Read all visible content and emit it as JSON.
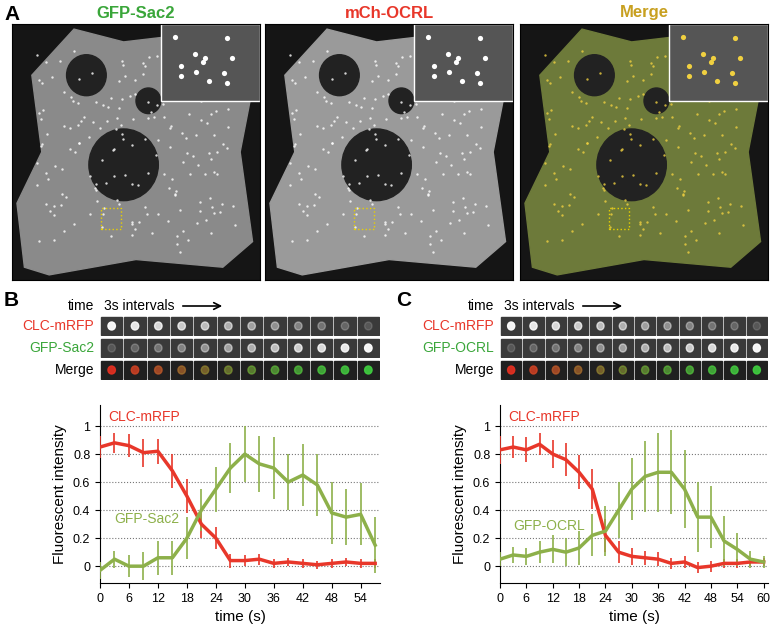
{
  "figure": {
    "panel_A": {
      "label": "A",
      "images": [
        {
          "title": "GFP-Sac2",
          "color": "#3aa63a"
        },
        {
          "title": "mCh-OCRL",
          "color": "#e8372a"
        },
        {
          "title": "Merge",
          "color": "#c8a020"
        }
      ]
    },
    "panel_B": {
      "label": "B",
      "time_label": "time",
      "interval_label": "3s intervals",
      "rows": [
        {
          "name": "CLC-mRFP",
          "color": "#e8372a"
        },
        {
          "name": "GFP-Sac2",
          "color": "#3aa63a"
        },
        {
          "name": "Merge",
          "color": "#000000"
        }
      ]
    },
    "panel_C": {
      "label": "C",
      "time_label": "time",
      "interval_label": "3s intervals",
      "rows": [
        {
          "name": "CLC-mRFP",
          "color": "#e8372a"
        },
        {
          "name": "GFP-OCRL",
          "color": "#3aa63a"
        },
        {
          "name": "Merge",
          "color": "#000000"
        }
      ]
    }
  },
  "chart_data": [
    {
      "type": "line",
      "x_label": "time (s)",
      "y_label": "Fluorescent intensity",
      "x": [
        0,
        3,
        6,
        9,
        12,
        15,
        18,
        21,
        24,
        27,
        30,
        33,
        36,
        39,
        42,
        45,
        48,
        51,
        54,
        57
      ],
      "xlim": [
        0,
        58
      ],
      "xticks": [
        0,
        6,
        12,
        18,
        24,
        30,
        36,
        42,
        48,
        54
      ],
      "ylim": [
        -0.12,
        1.15
      ],
      "yticks": [
        0,
        0.2,
        0.4,
        0.6,
        0.8,
        1
      ],
      "grid": true,
      "series": [
        {
          "name": "CLC-mRFP",
          "color": "#e8372a",
          "values": [
            0.85,
            0.88,
            0.86,
            0.81,
            0.82,
            0.68,
            0.5,
            0.3,
            0.2,
            0.04,
            0.04,
            0.05,
            0.02,
            0.03,
            0.02,
            0.01,
            0.02,
            0.03,
            0.02,
            0.02
          ],
          "errors": [
            0.08,
            0.07,
            0.08,
            0.1,
            0.09,
            0.12,
            0.12,
            0.1,
            0.08,
            0.05,
            0.04,
            0.04,
            0.03,
            0.03,
            0.03,
            0.03,
            0.03,
            0.03,
            0.03,
            0.03
          ]
        },
        {
          "name": "GFP-Sac2",
          "color": "#8db04a",
          "values": [
            -0.03,
            0.05,
            0.0,
            0.0,
            0.06,
            0.06,
            0.2,
            0.4,
            0.55,
            0.7,
            0.8,
            0.73,
            0.7,
            0.6,
            0.65,
            0.58,
            0.38,
            0.35,
            0.37,
            0.15
          ],
          "errors": [
            0.06,
            0.06,
            0.08,
            0.1,
            0.12,
            0.12,
            0.15,
            0.15,
            0.16,
            0.18,
            0.2,
            0.2,
            0.22,
            0.2,
            0.22,
            0.22,
            0.22,
            0.2,
            0.22,
            0.2
          ]
        }
      ]
    },
    {
      "type": "line",
      "x_label": "time (s)",
      "y_label": "Fluorescent intensity",
      "x": [
        0,
        3,
        6,
        9,
        12,
        15,
        18,
        21,
        24,
        27,
        30,
        33,
        36,
        39,
        42,
        45,
        48,
        51,
        54,
        57,
        60
      ],
      "xlim": [
        0,
        61
      ],
      "xticks": [
        0,
        6,
        12,
        18,
        24,
        30,
        36,
        42,
        48,
        54,
        60
      ],
      "ylim": [
        -0.12,
        1.15
      ],
      "yticks": [
        0,
        0.2,
        0.4,
        0.6,
        0.8,
        1
      ],
      "grid": true,
      "series": [
        {
          "name": "CLC-mRFP",
          "color": "#e8372a",
          "values": [
            0.83,
            0.85,
            0.83,
            0.87,
            0.8,
            0.76,
            0.67,
            0.55,
            0.22,
            0.1,
            0.07,
            0.06,
            0.05,
            0.02,
            0.03,
            -0.01,
            0.0,
            0.02,
            0.02,
            0.03,
            0.03
          ],
          "errors": [
            0.1,
            0.08,
            0.09,
            0.08,
            0.1,
            0.12,
            0.12,
            0.14,
            0.12,
            0.08,
            0.06,
            0.05,
            0.05,
            0.04,
            0.04,
            0.04,
            0.04,
            0.03,
            0.03,
            0.03,
            0.03
          ]
        },
        {
          "name": "GFP-OCRL",
          "color": "#8db04a",
          "values": [
            0.05,
            0.08,
            0.07,
            0.1,
            0.12,
            0.1,
            0.13,
            0.22,
            0.25,
            0.4,
            0.55,
            0.64,
            0.67,
            0.67,
            0.55,
            0.35,
            0.35,
            0.18,
            0.12,
            0.05,
            0.03
          ],
          "errors": [
            0.05,
            0.06,
            0.06,
            0.08,
            0.1,
            0.1,
            0.12,
            0.15,
            0.18,
            0.2,
            0.22,
            0.25,
            0.28,
            0.3,
            0.28,
            0.25,
            0.22,
            0.18,
            0.12,
            0.06,
            0.04
          ]
        }
      ]
    }
  ]
}
